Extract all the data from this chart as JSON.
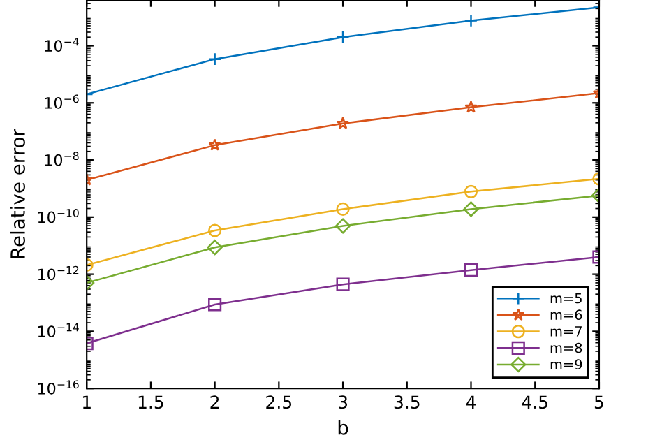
{
  "chart_data": {
    "type": "line",
    "xlabel": "b",
    "ylabel": "Relative error",
    "x": [
      1,
      2,
      3,
      4,
      5
    ],
    "series": [
      {
        "name": "m=5",
        "color": "#0072bd",
        "marker": "cross",
        "values": [
          2e-06,
          3.4e-05,
          0.0002,
          0.00076,
          0.0022
        ]
      },
      {
        "name": "m=6",
        "color": "#d95319",
        "marker": "star",
        "values": [
          2e-09,
          3.3e-08,
          1.9e-07,
          7e-07,
          2.2e-06
        ]
      },
      {
        "name": "m=7",
        "color": "#edb120",
        "marker": "circle",
        "values": [
          2.1e-12,
          3.4e-11,
          1.9e-10,
          7.8e-10,
          2.2e-09
        ]
      },
      {
        "name": "m=8",
        "color": "#7e2f8e",
        "marker": "square",
        "values": [
          3.8e-15,
          8.7e-14,
          4.4e-13,
          1.4e-12,
          4e-12
        ]
      },
      {
        "name": "m=9",
        "color": "#77ac30",
        "marker": "diamond",
        "values": [
          5e-13,
          8.7e-12,
          4.9e-11,
          1.9e-10,
          5.7e-10
        ]
      }
    ],
    "log": "y",
    "xlim": [
      1,
      5
    ],
    "xticks": [
      1,
      1.5,
      2,
      2.5,
      3,
      3.5,
      4,
      4.5,
      5
    ],
    "ylim": [
      1e-16,
      0.004
    ],
    "yticks": [
      {
        "value": 1e-16,
        "label": "10$^{−16}$"
      },
      {
        "value": 1e-14,
        "label": "10$^{−14}$"
      },
      {
        "value": 1e-12,
        "label": "10$^{−12}$"
      },
      {
        "value": 1e-10,
        "label": "10$^{−10}$"
      },
      {
        "value": 1e-08,
        "label": "10$^{−8}$"
      },
      {
        "value": 1e-06,
        "label": "10$^{−6}$"
      },
      {
        "value": 0.0001,
        "label": "10$^{−4}$"
      }
    ],
    "grid": false,
    "legend": "bottom right",
    "line_style": "solid"
  }
}
